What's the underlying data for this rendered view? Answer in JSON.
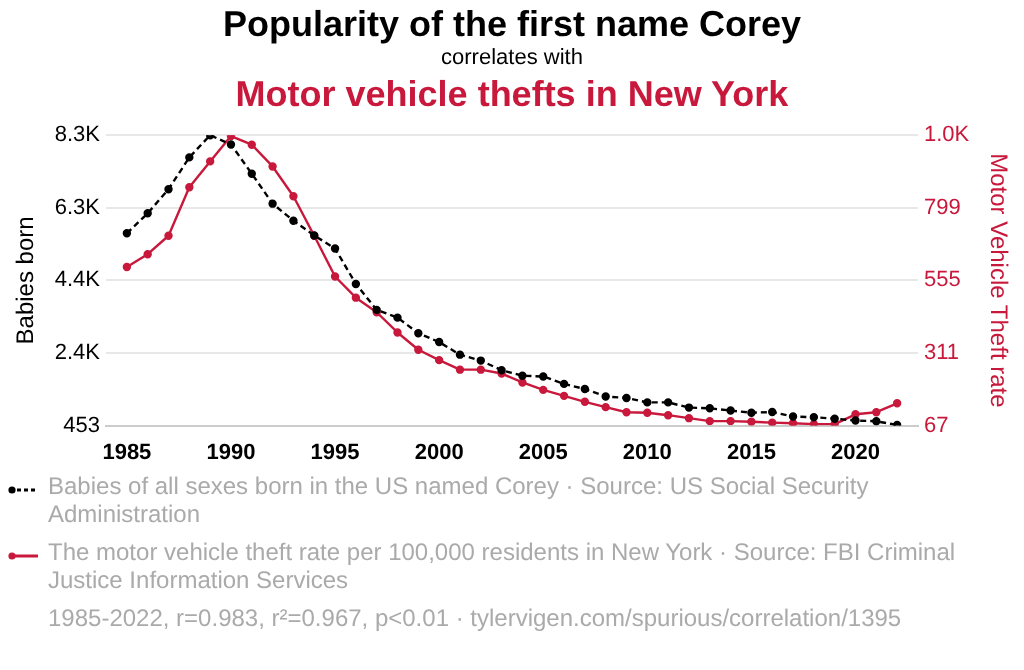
{
  "chart_data": {
    "type": "line",
    "title": "Popularity of the first name Corey",
    "subtitle": "correlates with",
    "annotations": [
      "Motor vehicle thefts in New York",
      "1985-2022, r=0.983, r²=0.967, p<0.01 · tylervigen.com/spurious/correlation/1395"
    ],
    "x": [
      1985,
      1986,
      1987,
      1988,
      1989,
      1990,
      1991,
      1992,
      1993,
      1994,
      1995,
      1996,
      1997,
      1998,
      1999,
      2000,
      2001,
      2002,
      2003,
      2004,
      2005,
      2006,
      2007,
      2008,
      2009,
      2010,
      2011,
      2012,
      2013,
      2014,
      2015,
      2016,
      2017,
      2018,
      2019,
      2020,
      2021,
      2022
    ],
    "series": [
      {
        "name": "Babies of all sexes born in the US named Corey · Source: US Social Security Administration",
        "color": "#000000",
        "line_style": "dashed",
        "values": [
          5650,
          6190,
          6840,
          7700,
          8300,
          8050,
          7260,
          6450,
          5990,
          5590,
          5240,
          4280,
          3580,
          3370,
          2950,
          2710,
          2370,
          2210,
          1950,
          1800,
          1780,
          1580,
          1440,
          1240,
          1200,
          1080,
          1080,
          940,
          920,
          860,
          800,
          820,
          700,
          680,
          640,
          590,
          570,
          470
        ]
      },
      {
        "name": "The motor vehicle theft rate per 100,000 residents in New York · Source: FBI Criminal Justice Information Services",
        "color": "#c8193c",
        "line_style": "solid",
        "axis": "y2",
        "values": [
          600,
          643,
          705,
          868,
          955,
          1040,
          1011,
          938,
          838,
          705,
          568,
          497,
          448,
          380,
          322,
          287,
          255,
          255,
          242,
          212,
          187,
          167,
          147,
          129,
          112,
          110,
          102,
          92,
          82,
          82,
          80,
          77,
          75,
          72,
          72,
          105,
          112,
          142
        ]
      }
    ],
    "xlim": [
      1984,
      2023
    ],
    "xticks": [
      1985,
      1990,
      1995,
      2000,
      2005,
      2010,
      2015,
      2020
    ],
    "ylabel": "Babies born",
    "y2label": "Motor Vehicle Theft rate",
    "ylim": [
      453,
      8300
    ],
    "yticks": [
      453,
      {
        "value": 2415,
        "label": "2.4K"
      },
      {
        "value": 4377,
        "label": "4.4K"
      },
      {
        "value": 6338,
        "label": "6.3K"
      },
      {
        "value": 8300,
        "label": "8.3K"
      }
    ],
    "y2lim": [
      67,
      1043
    ],
    "y2ticks": [
      67,
      311,
      555,
      799,
      {
        "value": 1043,
        "label": "1.0K"
      }
    ],
    "grid": "y",
    "legend": "bottom",
    "marker": "circle"
  }
}
